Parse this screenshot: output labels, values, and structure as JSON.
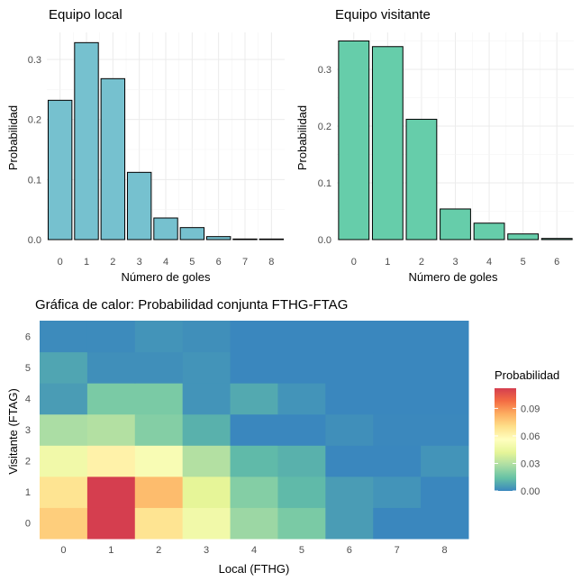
{
  "chart_data": [
    {
      "type": "bar",
      "title": "Equipo local",
      "xlabel": "Número de goles",
      "ylabel": "Probabilidad",
      "categories": [
        "0",
        "1",
        "2",
        "3",
        "4",
        "5",
        "6",
        "7",
        "8"
      ],
      "values": [
        0.232,
        0.328,
        0.268,
        0.112,
        0.036,
        0.02,
        0.005,
        0.001,
        0.001
      ],
      "ylim": [
        0,
        0.345
      ],
      "yticks": [
        "0.0",
        "0.1",
        "0.2",
        "0.3"
      ],
      "color": "#76C1CF",
      "grid": true
    },
    {
      "type": "bar",
      "title": "Equipo visitante",
      "xlabel": "Número de goles",
      "ylabel": "Probabilidad",
      "categories": [
        "0",
        "1",
        "2",
        "3",
        "4",
        "5",
        "6"
      ],
      "values": [
        0.35,
        0.34,
        0.212,
        0.054,
        0.029,
        0.01,
        0.002
      ],
      "ylim": [
        0,
        0.365
      ],
      "yticks": [
        "0.0",
        "0.1",
        "0.2",
        "0.3"
      ],
      "color": "#66CDAA",
      "grid": true
    },
    {
      "type": "heatmap",
      "title": "Gráfica de calor: Probabilidad conjunta FTHG-FTAG",
      "xlabel": "Local (FTHG)",
      "ylabel": "Visitante (FTAG)",
      "x": [
        "0",
        "1",
        "2",
        "3",
        "4",
        "5",
        "6",
        "7",
        "8"
      ],
      "y": [
        "0",
        "1",
        "2",
        "3",
        "4",
        "5",
        "6"
      ],
      "values": [
        [
          0.075,
          0.112,
          0.068,
          0.048,
          0.025,
          0.018,
          0.005,
          0.0,
          0.0
        ],
        [
          0.068,
          0.112,
          0.08,
          0.042,
          0.02,
          0.012,
          0.005,
          0.003,
          0.0
        ],
        [
          0.048,
          0.062,
          0.052,
          0.03,
          0.012,
          0.01,
          0.0,
          0.0,
          0.003
        ],
        [
          0.028,
          0.03,
          0.02,
          0.01,
          0.0,
          0.0,
          0.002,
          null,
          null
        ],
        [
          0.005,
          0.018,
          0.018,
          0.003,
          0.008,
          0.003,
          0.0,
          0.0,
          0.0
        ],
        [
          0.007,
          0.002,
          0.002,
          0.003,
          0.0,
          0.0,
          0.0,
          0.0,
          0.0
        ],
        [
          0.001,
          0.001,
          0.003,
          0.002,
          0.0,
          0.0,
          0.0,
          0.0,
          0.0
        ]
      ],
      "legend_title": "Probabilidad",
      "legend_ticks": [
        "0.00",
        "0.03",
        "0.06",
        "0.09"
      ],
      "legend_placement": "right",
      "scale_max": 0.112,
      "palette": [
        "#3A87BE",
        "#66C2A5",
        "#ABDDA4",
        "#E6F598",
        "#FFFFBF",
        "#FEE08B",
        "#FDAE61",
        "#F46D43",
        "#D53E4F"
      ],
      "empty_color": "#3B88BD"
    }
  ]
}
